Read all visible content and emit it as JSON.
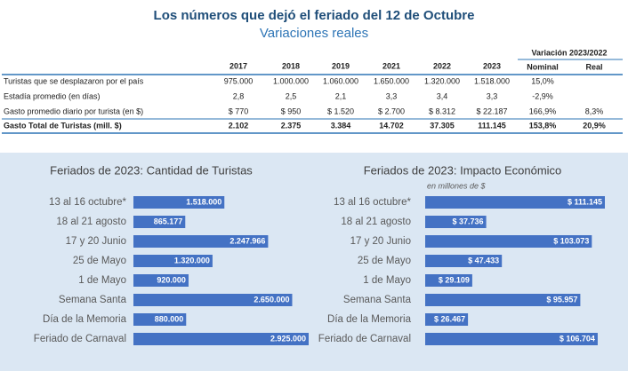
{
  "header": {
    "title": "Los números que dejó el feriado del 12 de Octubre",
    "subtitle": "Variaciones reales"
  },
  "table": {
    "columns": [
      "2017",
      "2018",
      "2019",
      "2021",
      "2022",
      "2023"
    ],
    "group_header": "Variación 2023/2022",
    "group_columns": [
      "Nominal",
      "Real"
    ],
    "rows": [
      [
        "Turistas que se desplazaron por el país",
        "975.000",
        "1.000.000",
        "1.060.000",
        "1.650.000",
        "1.320.000",
        "1.518.000",
        "15,0%",
        null
      ],
      [
        "Estadía promedio (en días)",
        "2,8",
        "2,5",
        "2,1",
        "3,3",
        "3,4",
        "3,3",
        "-2,9%",
        null
      ],
      [
        "Gasto promedio diario por turista (en $)",
        "$ 770",
        "$ 950",
        "$ 1.520",
        "$ 2.700",
        "$ 8.312",
        "$ 22.187",
        "166,9%",
        "8,3%"
      ],
      [
        "Gasto Total de Turistas (mill. $)",
        "2.102",
        "2.375",
        "3.384",
        "14.702",
        "37.305",
        "111.145",
        "153,8%",
        "20,9%"
      ]
    ]
  },
  "chart_data": [
    {
      "type": "bar",
      "orientation": "horizontal",
      "title": "Feriados de 2023: Cantidad de Turistas",
      "color": "#4472c4",
      "categories": [
        "13 al 16 octubre*",
        "18 al 21 agosto",
        "17 y 20 Junio",
        "25 de Mayo",
        "1 de Mayo",
        "Semana Santa",
        "Día de la Memoria",
        "Feriado de Carnaval"
      ],
      "values": [
        1518000,
        865177,
        2247966,
        1320000,
        920000,
        2650000,
        880000,
        2925000
      ],
      "value_labels": [
        "1.518.000",
        "865.177",
        "2.247.966",
        "1.320.000",
        "920.000",
        "2.650.000",
        "880.000",
        "2.925.000"
      ]
    },
    {
      "type": "bar",
      "orientation": "horizontal",
      "title": "Feriados de 2023: Impacto Económico",
      "subtitle": "en millones de $",
      "color": "#4472c4",
      "categories": [
        "13 al 16 octubre*",
        "18 al 21 agosto",
        "17 y 20 Junio",
        "25 de Mayo",
        "1 de Mayo",
        "Semana Santa",
        "Día de la Memoria",
        "Feriado de Carnaval"
      ],
      "values": [
        111145,
        37736,
        103073,
        47433,
        29109,
        95957,
        26467,
        106704
      ],
      "value_labels": [
        "$ 111.145",
        "$ 37.736",
        "$ 103.073",
        "$ 47.433",
        "$ 29.109",
        "$ 95.957",
        "$ 26.467",
        "$ 106.704"
      ]
    }
  ]
}
